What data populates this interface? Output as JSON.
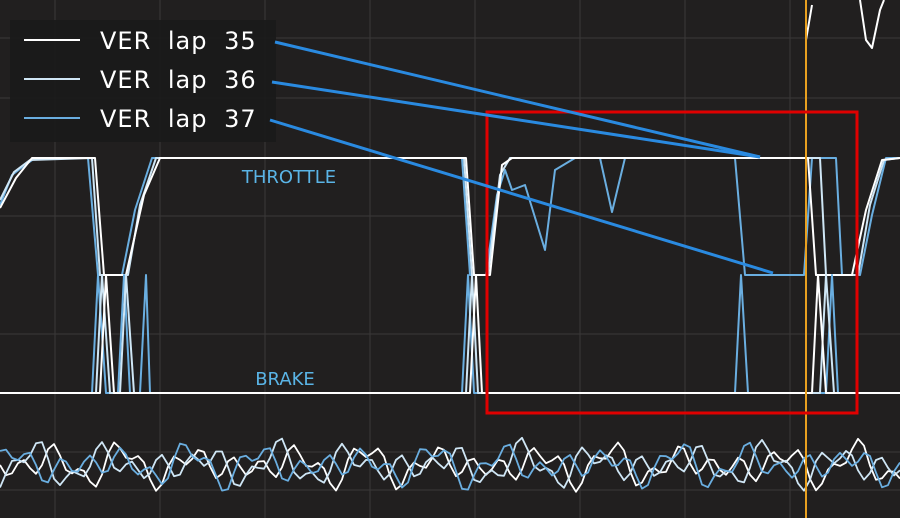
{
  "legend": {
    "entries": [
      {
        "label": "VER lap 35",
        "color": "#ffffff"
      },
      {
        "label": "VER lap 36",
        "color": "#cfe6f5"
      },
      {
        "label": "VER lap 37",
        "color": "#6aaee0"
      }
    ]
  },
  "labels": {
    "throttle": "THROTTLE",
    "brake": "BRAKE",
    "color": "#5ab4e6"
  }
}
